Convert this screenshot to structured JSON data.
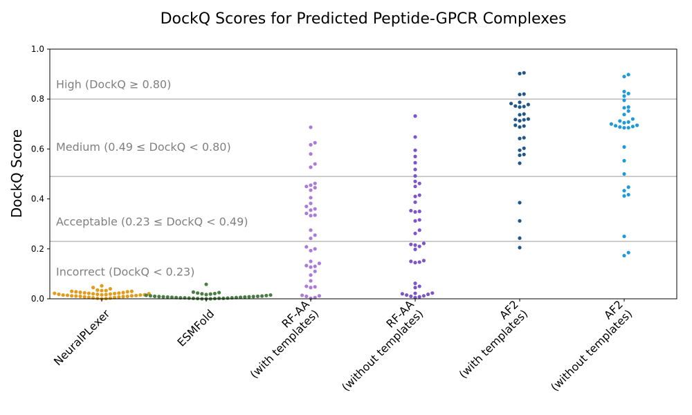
{
  "chart_data": {
    "type": "scatter",
    "title": "DockQ Scores for Predicted Peptide-GPCR Complexes",
    "xlabel": "",
    "ylabel": "DockQ Score",
    "ylim": [
      0,
      1.0
    ],
    "y_ticks": [
      "0.0",
      "0.2",
      "0.4",
      "0.6",
      "0.8",
      "1.0"
    ],
    "grid": false,
    "legend": "none",
    "threshold_lines": [
      {
        "value": 0.23,
        "color": "#bbbbbb"
      },
      {
        "value": 0.49,
        "color": "#bbbbbb"
      },
      {
        "value": 0.8,
        "color": "#bbbbbb"
      }
    ],
    "zone_labels": [
      {
        "text": "High (DockQ ≥ 0.80)",
        "y": 0.86
      },
      {
        "text": "Medium (0.49 ≤ DockQ < 0.80)",
        "y": 0.61
      },
      {
        "text": "Acceptable (0.23 ≤ DockQ < 0.49)",
        "y": 0.31
      },
      {
        "text": "Incorrect (DockQ < 0.23)",
        "y": 0.11
      }
    ],
    "categories": [
      {
        "label_lines": [
          "NeuralPLexer"
        ],
        "color": "#e39b1a"
      },
      {
        "label_lines": [
          "ESMFold"
        ],
        "color": "#4a7d44"
      },
      {
        "label_lines": [
          "RF-AA",
          "(with templates)"
        ],
        "color": "#a97cd8"
      },
      {
        "label_lines": [
          "RF-AA",
          "(without templates)"
        ],
        "color": "#7d55c7"
      },
      {
        "label_lines": [
          "AF2",
          "(with templates)"
        ],
        "color": "#21568a"
      },
      {
        "label_lines": [
          "AF2",
          "(without templates)"
        ],
        "color": "#1d9ad8"
      }
    ],
    "series": [
      {
        "values": [
          0.052,
          0.045,
          0.04,
          0.035,
          0.033,
          0.033,
          0.03,
          0.03,
          0.028,
          0.028,
          0.026,
          0.025,
          0.024,
          0.023,
          0.022,
          0.022,
          0.021,
          0.02,
          0.02,
          0.019,
          0.018,
          0.018,
          0.017,
          0.016,
          0.016,
          0.015,
          0.015,
          0.014,
          0.013,
          0.012,
          0.012,
          0.011,
          0.01,
          0.01,
          0.009,
          0.008,
          0.007,
          0.006,
          0.005,
          0.004,
          0.003,
          0.002,
          0.001,
          0.0
        ]
      },
      {
        "values": [
          0.058,
          0.027,
          0.025,
          0.023,
          0.021,
          0.02,
          0.019,
          0.017,
          0.015,
          0.014,
          0.013,
          0.012,
          0.011,
          0.01,
          0.01,
          0.009,
          0.009,
          0.008,
          0.008,
          0.007,
          0.007,
          0.006,
          0.006,
          0.005,
          0.005,
          0.004,
          0.004,
          0.004,
          0.003,
          0.003,
          0.002,
          0.002,
          0.002,
          0.001,
          0.001,
          0.0,
          0.0,
          0.0
        ]
      },
      {
        "values": [
          0.687,
          0.625,
          0.617,
          0.58,
          0.54,
          0.527,
          0.462,
          0.455,
          0.45,
          0.445,
          0.435,
          0.405,
          0.382,
          0.37,
          0.36,
          0.355,
          0.342,
          0.335,
          0.333,
          0.275,
          0.255,
          0.242,
          0.208,
          0.2,
          0.193,
          0.15,
          0.142,
          0.133,
          0.13,
          0.127,
          0.11,
          0.095,
          0.072,
          0.05,
          0.048,
          0.045,
          0.014,
          0.012,
          0.01,
          0.005,
          0.002
        ]
      },
      {
        "values": [
          0.732,
          0.648,
          0.595,
          0.57,
          0.545,
          0.518,
          0.492,
          0.47,
          0.462,
          0.45,
          0.415,
          0.41,
          0.387,
          0.353,
          0.35,
          0.348,
          0.316,
          0.312,
          0.275,
          0.262,
          0.222,
          0.218,
          0.215,
          0.21,
          0.198,
          0.153,
          0.15,
          0.147,
          0.145,
          0.062,
          0.05,
          0.045,
          0.023,
          0.022,
          0.02,
          0.018,
          0.015,
          0.012,
          0.01,
          0.008,
          0.005
        ]
      },
      {
        "values": [
          0.905,
          0.902,
          0.82,
          0.818,
          0.787,
          0.782,
          0.778,
          0.772,
          0.77,
          0.768,
          0.74,
          0.737,
          0.72,
          0.718,
          0.717,
          0.713,
          0.695,
          0.692,
          0.688,
          0.645,
          0.642,
          0.603,
          0.595,
          0.578,
          0.575,
          0.543,
          0.385,
          0.312,
          0.243,
          0.205
        ]
      },
      {
        "values": [
          0.898,
          0.89,
          0.83,
          0.822,
          0.812,
          0.795,
          0.768,
          0.765,
          0.752,
          0.738,
          0.72,
          0.712,
          0.708,
          0.705,
          0.7,
          0.695,
          0.693,
          0.69,
          0.688,
          0.685,
          0.685,
          0.608,
          0.553,
          0.5,
          0.447,
          0.433,
          0.417,
          0.412,
          0.25,
          0.185,
          0.173
        ]
      }
    ]
  }
}
